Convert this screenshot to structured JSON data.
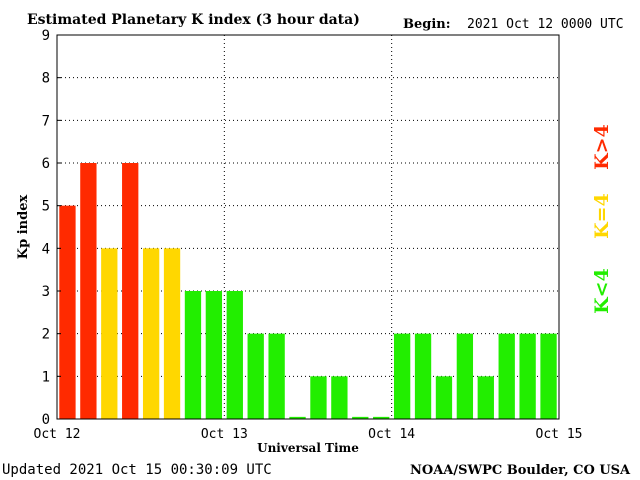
{
  "header": {
    "title": "Estimated Planetary K index (3 hour data)",
    "begin_label": "Begin:",
    "begin_value": "2021 Oct 12 0000 UTC"
  },
  "footer": {
    "updated": "Updated 2021 Oct 15 00:30:09 UTC",
    "source": "NOAA/SWPC Boulder, CO USA"
  },
  "legend": {
    "high": "K>4",
    "equal": "K=4",
    "low": "K<4"
  },
  "colors": {
    "high": "#ff2a00",
    "equal": "#ffd700",
    "low": "#22ee00"
  },
  "chart_data": {
    "type": "bar",
    "title": "Estimated Planetary K index (3 hour data)",
    "xlabel": "Universal Time",
    "ylabel": "Kp index",
    "ylim": [
      0,
      9
    ],
    "yticks": [
      "0",
      "1",
      "2",
      "3",
      "4",
      "5",
      "6",
      "7",
      "8",
      "9"
    ],
    "xticks": [
      "Oct 12",
      "Oct 13",
      "Oct 14",
      "Oct 15"
    ],
    "grid": true,
    "categories": [
      "Oct 12 00",
      "Oct 12 03",
      "Oct 12 06",
      "Oct 12 09",
      "Oct 12 12",
      "Oct 12 15",
      "Oct 12 18",
      "Oct 12 21",
      "Oct 13 00",
      "Oct 13 03",
      "Oct 13 06",
      "Oct 13 09",
      "Oct 13 12",
      "Oct 13 15",
      "Oct 13 18",
      "Oct 13 21",
      "Oct 14 00",
      "Oct 14 03",
      "Oct 14 06",
      "Oct 14 09",
      "Oct 14 12",
      "Oct 14 15",
      "Oct 14 18",
      "Oct 14 21"
    ],
    "values": [
      5,
      6,
      4,
      6,
      4,
      4,
      3,
      3,
      3,
      2,
      2,
      0.05,
      1,
      1,
      0.05,
      0.05,
      2,
      2,
      1,
      2,
      1,
      2,
      2,
      2
    ]
  }
}
